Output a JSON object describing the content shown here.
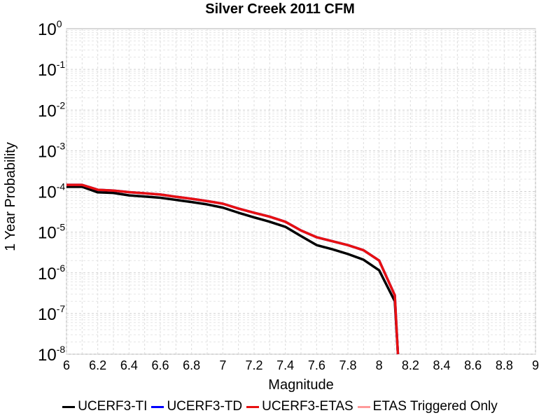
{
  "chart_data": {
    "type": "line",
    "title": "Silver Creek 2011 CFM",
    "xlabel": "Magnitude",
    "ylabel": "1 Year Probability",
    "xlim": [
      6,
      9
    ],
    "ylim": [
      1e-08,
      1
    ],
    "yscale": "log",
    "grid": true,
    "legend_position": "bottom",
    "x_ticks": [
      "6",
      "6.2",
      "6.4",
      "6.6",
      "6.8",
      "7",
      "7.2",
      "7.4",
      "7.6",
      "7.8",
      "8",
      "8.2",
      "8.4",
      "8.6",
      "8.8",
      "9"
    ],
    "y_ticks": [
      {
        "base": "10",
        "exp": "0"
      },
      {
        "base": "10",
        "exp": "-1"
      },
      {
        "base": "10",
        "exp": "-2"
      },
      {
        "base": "10",
        "exp": "-3"
      },
      {
        "base": "10",
        "exp": "-4"
      },
      {
        "base": "10",
        "exp": "-5"
      },
      {
        "base": "10",
        "exp": "-6"
      },
      {
        "base": "10",
        "exp": "-7"
      },
      {
        "base": "10",
        "exp": "-8"
      }
    ],
    "series": [
      {
        "name": "UCERF3-TI",
        "color": "#000000",
        "x": [
          6.0,
          6.1,
          6.2,
          6.3,
          6.4,
          6.5,
          6.6,
          6.7,
          6.8,
          6.9,
          7.0,
          7.1,
          7.2,
          7.3,
          7.4,
          7.5,
          7.6,
          7.7,
          7.8,
          7.9,
          8.0,
          8.1,
          8.12
        ],
        "y": [
          0.00013,
          0.00013,
          9.5e-05,
          9.2e-05,
          8e-05,
          7.5e-05,
          7e-05,
          6.2e-05,
          5.5e-05,
          4.8e-05,
          4e-05,
          3e-05,
          2.3e-05,
          1.8e-05,
          1.35e-05,
          8e-06,
          4.8e-06,
          3.8e-06,
          2.9e-06,
          2.1e-06,
          1.15e-06,
          2e-07,
          1e-08
        ]
      },
      {
        "name": "UCERF3-TD",
        "color": "#0000ff",
        "x": [
          6.0,
          6.1,
          6.2,
          6.3,
          6.4,
          6.5,
          6.6,
          6.7,
          6.8,
          6.9,
          7.0,
          7.1,
          7.2,
          7.3,
          7.4,
          7.5,
          7.6,
          7.7,
          7.8,
          7.9,
          8.0,
          8.1,
          8.12
        ],
        "y": [
          0.000145,
          0.000145,
          0.00011,
          0.000105,
          9.6e-05,
          9e-05,
          8.4e-05,
          7.4e-05,
          6.6e-05,
          5.8e-05,
          5e-05,
          3.8e-05,
          3e-05,
          2.4e-05,
          1.8e-05,
          1.1e-05,
          7.5e-06,
          6e-06,
          4.8e-06,
          3.6e-06,
          2e-06,
          2.8e-07,
          1e-08
        ]
      },
      {
        "name": "UCERF3-ETAS",
        "color": "#e81010",
        "x": [
          6.0,
          6.1,
          6.2,
          6.3,
          6.4,
          6.5,
          6.6,
          6.7,
          6.8,
          6.9,
          7.0,
          7.1,
          7.2,
          7.3,
          7.4,
          7.5,
          7.6,
          7.7,
          7.8,
          7.9,
          8.0,
          8.1,
          8.12
        ],
        "y": [
          0.000145,
          0.000145,
          0.00011,
          0.000105,
          9.6e-05,
          9e-05,
          8.4e-05,
          7.4e-05,
          6.6e-05,
          5.8e-05,
          5e-05,
          3.8e-05,
          3e-05,
          2.4e-05,
          1.8e-05,
          1.1e-05,
          7.5e-06,
          6e-06,
          4.8e-06,
          3.6e-06,
          2e-06,
          2.8e-07,
          1e-08
        ]
      },
      {
        "name": "ETAS Triggered Only",
        "color": "#ff9a9a",
        "x": [],
        "y": []
      }
    ]
  }
}
